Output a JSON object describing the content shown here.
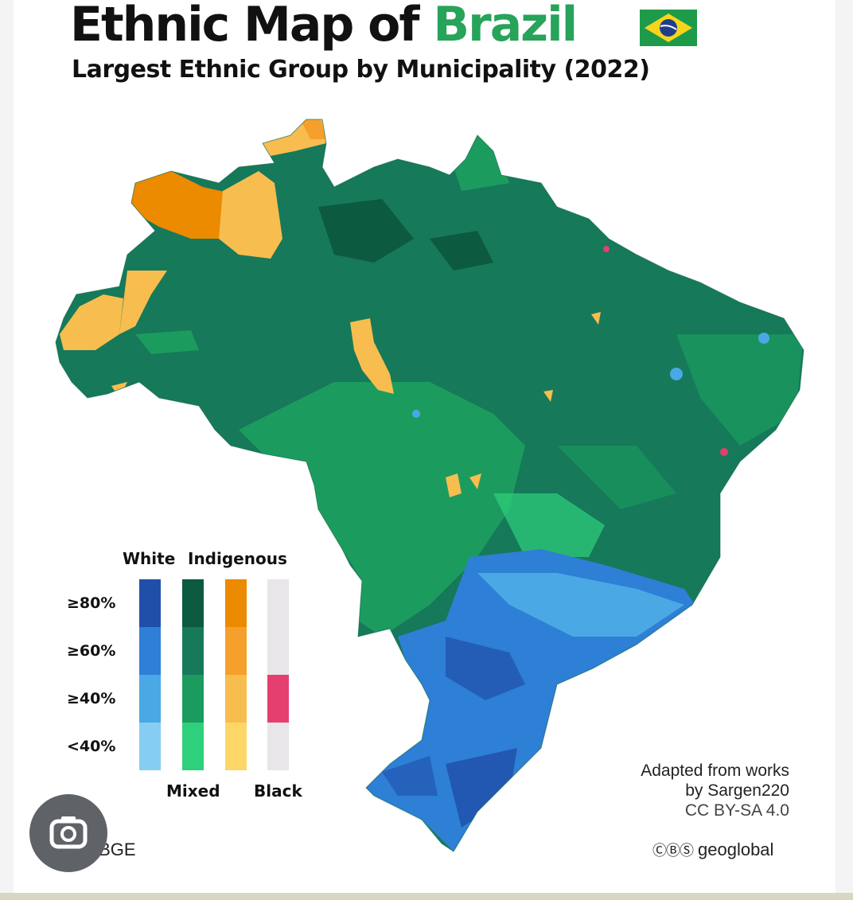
{
  "header": {
    "title_main": "Ethnic Map of ",
    "title_accent": "Brazil",
    "subtitle": "Largest Ethnic Group by Municipality (2022)",
    "flag_icon": "brazil-flag-icon"
  },
  "legend": {
    "group_labels_top": [
      "White",
      "Indigenous"
    ],
    "group_labels_bottom": [
      "Mixed",
      "Black"
    ],
    "thresholds": [
      "≥80%",
      "≥60%",
      "≥40%",
      "<40%"
    ],
    "colors": {
      "white": [
        "#1f4fa8",
        "#2e7fd6",
        "#4aa9e4",
        "#86cdf3"
      ],
      "mixed": [
        "#0c5a3f",
        "#16795a",
        "#1b9c5e",
        "#2fd07b"
      ],
      "indigenous": [
        "#ec8a00",
        "#f5a02c",
        "#f8bd4f",
        "#fcd768"
      ],
      "black": [
        "#e8e6e8",
        "#e8e6e8",
        "#e43f6f",
        "#e8e6e8"
      ]
    }
  },
  "credit": {
    "line1": "Adapted from works",
    "line2": "by Sargen220",
    "line3": "CC BY-SA 4.0"
  },
  "brand": {
    "cc_icons": "ⒸⒷⓈ",
    "name": "geoglobal"
  },
  "source": "IBGE",
  "overlay": {
    "lens_icon": "camera-search-icon"
  }
}
